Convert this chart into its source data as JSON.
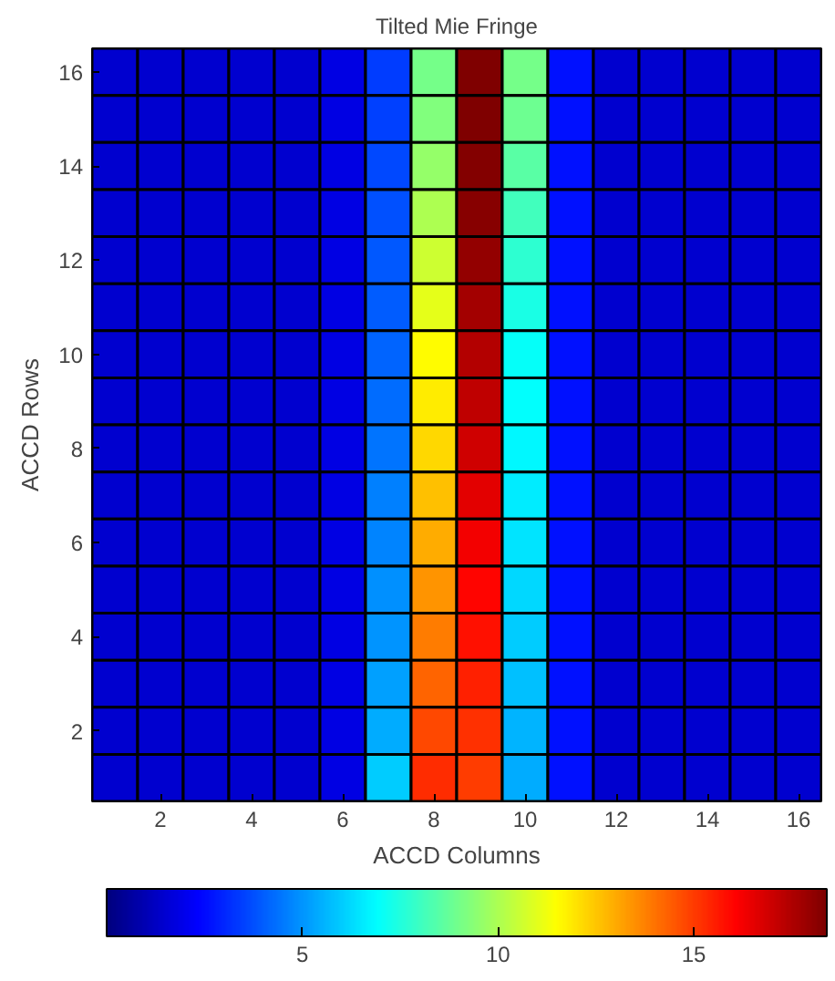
{
  "chart_data": {
    "type": "heatmap",
    "title": "Tilted Mie Fringe",
    "xlabel": "ACCD Columns",
    "ylabel": "ACCD Rows",
    "categories": [
      null,
      "2",
      null,
      "4",
      null,
      "6",
      null,
      "8",
      null,
      "10",
      null,
      "12",
      null,
      "14",
      null,
      "16"
    ],
    "y_categories": [
      "16",
      null,
      "14",
      null,
      "12",
      null,
      "10",
      null,
      "8",
      null,
      "6",
      null,
      "4",
      null,
      "2",
      null
    ],
    "cells": [
      [
        1.5,
        1.5,
        1.5,
        1.5,
        1.5,
        1.8,
        3.4,
        9.0,
        18.4,
        9.0,
        2.6,
        1.5,
        1.5,
        1.5,
        1.5,
        1.5
      ],
      [
        1.5,
        1.5,
        1.5,
        1.5,
        1.5,
        1.8,
        3.5,
        9.2,
        18.4,
        8.9,
        2.6,
        1.5,
        1.5,
        1.5,
        1.5,
        1.5
      ],
      [
        1.5,
        1.5,
        1.5,
        1.5,
        1.5,
        1.8,
        3.6,
        9.6,
        18.3,
        8.5,
        2.6,
        1.5,
        1.5,
        1.5,
        1.5,
        1.5
      ],
      [
        1.5,
        1.5,
        1.5,
        1.5,
        1.5,
        1.8,
        3.8,
        10.0,
        18.2,
        8.1,
        2.6,
        1.5,
        1.5,
        1.5,
        1.5,
        1.5
      ],
      [
        1.5,
        1.5,
        1.5,
        1.5,
        1.5,
        1.8,
        3.9,
        10.6,
        18.0,
        7.7,
        2.6,
        1.5,
        1.5,
        1.5,
        1.5,
        1.5
      ],
      [
        1.5,
        1.5,
        1.5,
        1.5,
        1.5,
        1.8,
        4.0,
        11.0,
        17.7,
        7.4,
        2.6,
        1.5,
        1.5,
        1.5,
        1.5,
        1.5
      ],
      [
        1.5,
        1.5,
        1.5,
        1.5,
        1.5,
        1.8,
        4.1,
        11.5,
        17.4,
        7.0,
        2.6,
        1.5,
        1.5,
        1.5,
        1.5,
        1.5
      ],
      [
        1.5,
        1.5,
        1.5,
        1.5,
        1.5,
        1.8,
        4.3,
        11.8,
        17.2,
        6.9,
        2.6,
        1.5,
        1.5,
        1.5,
        1.5,
        1.5
      ],
      [
        1.5,
        1.5,
        1.5,
        1.5,
        1.5,
        1.8,
        4.4,
        12.2,
        16.9,
        6.8,
        2.6,
        1.5,
        1.5,
        1.5,
        1.5,
        1.5
      ],
      [
        1.5,
        1.5,
        1.5,
        1.5,
        1.5,
        1.8,
        4.6,
        12.6,
        16.6,
        6.6,
        2.6,
        1.5,
        1.5,
        1.5,
        1.5,
        1.5
      ],
      [
        1.5,
        1.5,
        1.5,
        1.5,
        1.5,
        1.8,
        4.7,
        13.0,
        16.3,
        6.4,
        2.6,
        1.5,
        1.5,
        1.5,
        1.5,
        1.5
      ],
      [
        1.5,
        1.5,
        1.5,
        1.5,
        1.5,
        1.8,
        4.9,
        13.4,
        16.0,
        6.2,
        2.6,
        1.5,
        1.5,
        1.5,
        1.5,
        1.5
      ],
      [
        1.5,
        1.5,
        1.5,
        1.5,
        1.5,
        1.8,
        5.0,
        13.8,
        15.8,
        6.0,
        2.6,
        1.5,
        1.5,
        1.5,
        1.5,
        1.5
      ],
      [
        1.5,
        1.5,
        1.5,
        1.5,
        1.5,
        1.8,
        5.2,
        14.3,
        15.5,
        5.8,
        2.6,
        1.5,
        1.5,
        1.5,
        1.5,
        1.5
      ],
      [
        1.5,
        1.5,
        1.5,
        1.5,
        1.5,
        1.8,
        5.4,
        14.8,
        15.2,
        5.6,
        2.6,
        1.5,
        1.5,
        1.5,
        1.5,
        1.5
      ],
      [
        1.5,
        1.5,
        1.5,
        1.5,
        1.5,
        1.8,
        6.0,
        15.3,
        15.0,
        5.4,
        2.6,
        1.5,
        1.5,
        1.5,
        1.5,
        1.5
      ]
    ],
    "clim": [
      0,
      18.4
    ],
    "cticks": [
      5,
      10,
      15
    ]
  }
}
